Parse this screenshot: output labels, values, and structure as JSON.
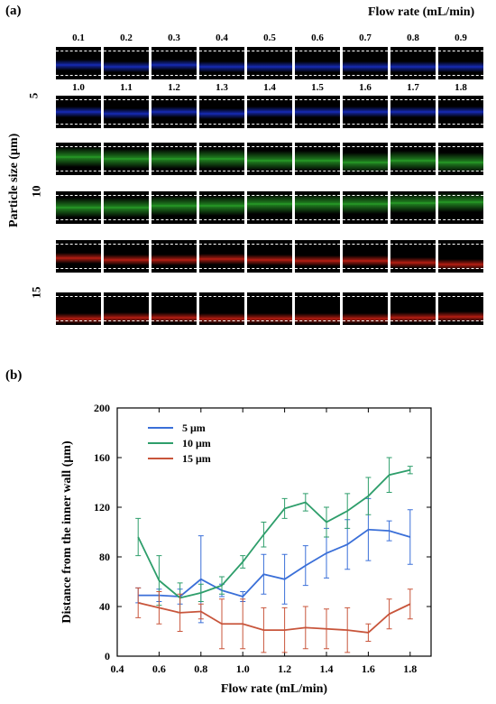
{
  "panel_a": {
    "label": "(a)",
    "flow_title": "Flow rate (mL/min)",
    "y_label": "Particle size (μm)",
    "size_labels": [
      "5",
      "10",
      "15"
    ],
    "flow_rates_row1": [
      "0.1",
      "0.2",
      "0.3",
      "0.4",
      "0.5",
      "0.6",
      "0.7",
      "0.8",
      "0.9"
    ],
    "flow_rates_row2": [
      "1.0",
      "1.1",
      "1.2",
      "1.3",
      "1.4",
      "1.5",
      "1.6",
      "1.7",
      "1.8"
    ],
    "rows": [
      {
        "size": "5",
        "color": "#1f3cff"
      },
      {
        "size": "5",
        "color": "#1f3cff"
      },
      {
        "size": "10",
        "color": "#33cc33"
      },
      {
        "size": "10",
        "color": "#33cc33"
      },
      {
        "size": "15",
        "color": "#ff2a1a"
      },
      {
        "size": "15",
        "color": "#ff2a1a"
      }
    ]
  },
  "panel_b": {
    "label": "(b)"
  },
  "chart_data": {
    "type": "line",
    "xlabel": "Flow rate (mL/min)",
    "ylabel": "Distance from the inner wall (μm)",
    "xlim": [
      0.4,
      1.9
    ],
    "ylim": [
      0,
      200
    ],
    "xticks": [
      "0.4",
      "0.6",
      "0.8",
      "1.0",
      "1.2",
      "1.4",
      "1.6",
      "1.8"
    ],
    "yticks": [
      "0",
      "40",
      "80",
      "120",
      "160",
      "200"
    ],
    "legend_position": "top-left",
    "x": [
      0.5,
      0.6,
      0.7,
      0.8,
      0.9,
      1.0,
      1.1,
      1.2,
      1.3,
      1.4,
      1.5,
      1.6,
      1.7,
      1.8
    ],
    "series": [
      {
        "name": "5  μm",
        "color": "#3a6fd8",
        "values": [
          49,
          49,
          48,
          62,
          53,
          48,
          66,
          62,
          73,
          83,
          90,
          102,
          101,
          96
        ],
        "errors": [
          6,
          5,
          6,
          35,
          5,
          4,
          16,
          20,
          16,
          20,
          20,
          25,
          8,
          22
        ]
      },
      {
        "name": "10  μm",
        "color": "#2e9e6b",
        "values": [
          96,
          61,
          47,
          51,
          57,
          76,
          98,
          119,
          124,
          108,
          117,
          129,
          146,
          150
        ],
        "errors": [
          15,
          20,
          12,
          7,
          7,
          5,
          10,
          8,
          7,
          12,
          14,
          15,
          14,
          3
        ]
      },
      {
        "name": "15  μm",
        "color": "#c8553b",
        "values": [
          43,
          39,
          35,
          36,
          26,
          26,
          21,
          21,
          23,
          22,
          21,
          19,
          34,
          42
        ],
        "errors": [
          12,
          13,
          15,
          6,
          20,
          20,
          18,
          18,
          17,
          16,
          18,
          7,
          12,
          12
        ]
      }
    ]
  }
}
